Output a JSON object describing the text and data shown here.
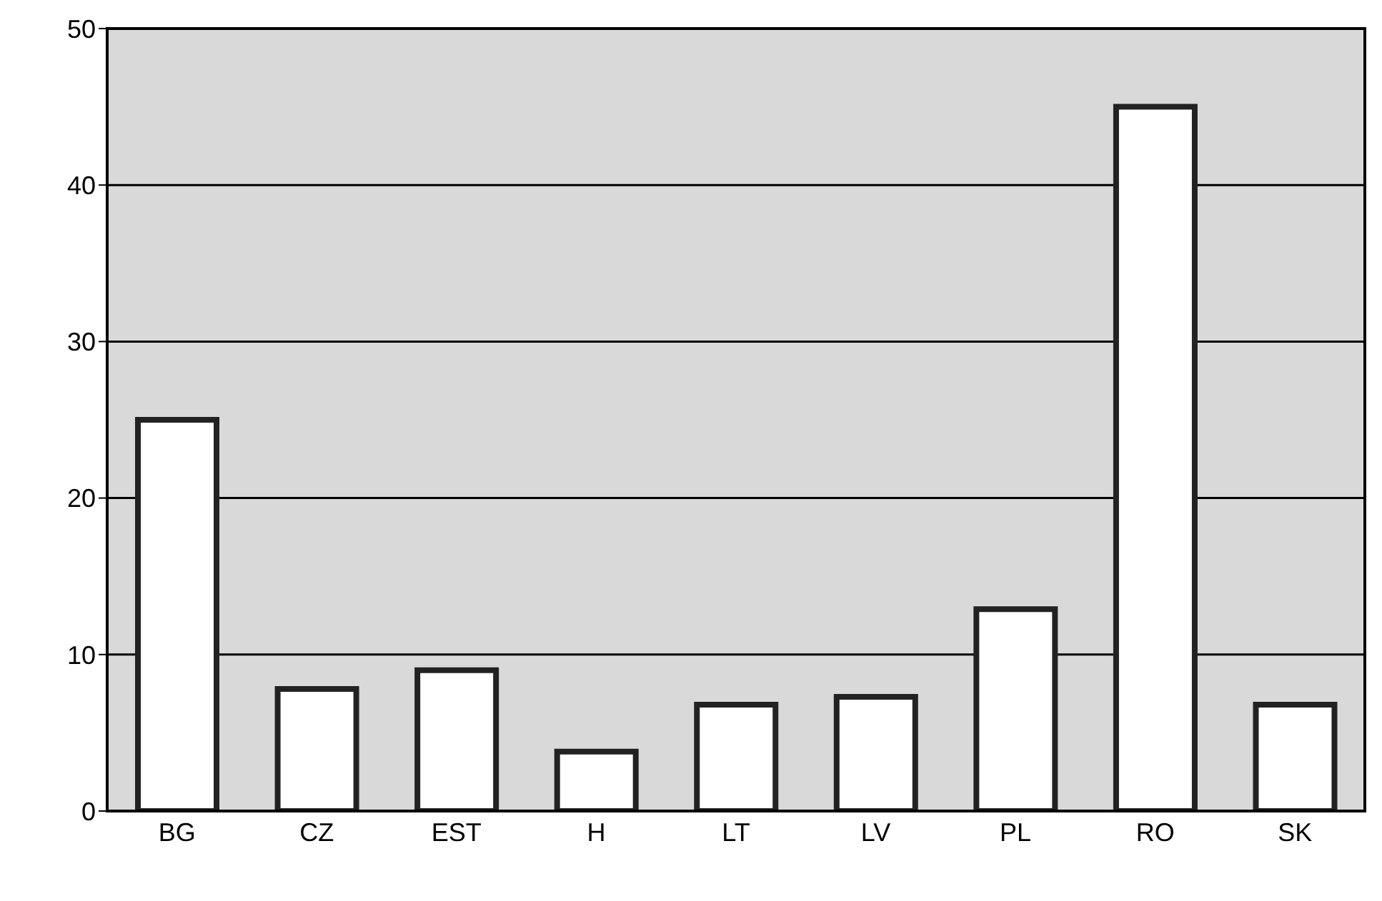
{
  "chart_data": {
    "type": "bar",
    "categories": [
      "BG",
      "CZ",
      "EST",
      "H",
      "LT",
      "LV",
      "PL",
      "RO",
      "SK"
    ],
    "values": [
      25,
      7.8,
      9,
      3.8,
      6.8,
      7.3,
      12.9,
      45,
      6.8
    ],
    "color": "#ffffff",
    "ylim": [
      0,
      50
    ],
    "yticks": [
      0,
      10,
      20,
      30,
      40,
      50
    ],
    "grid": "y"
  }
}
